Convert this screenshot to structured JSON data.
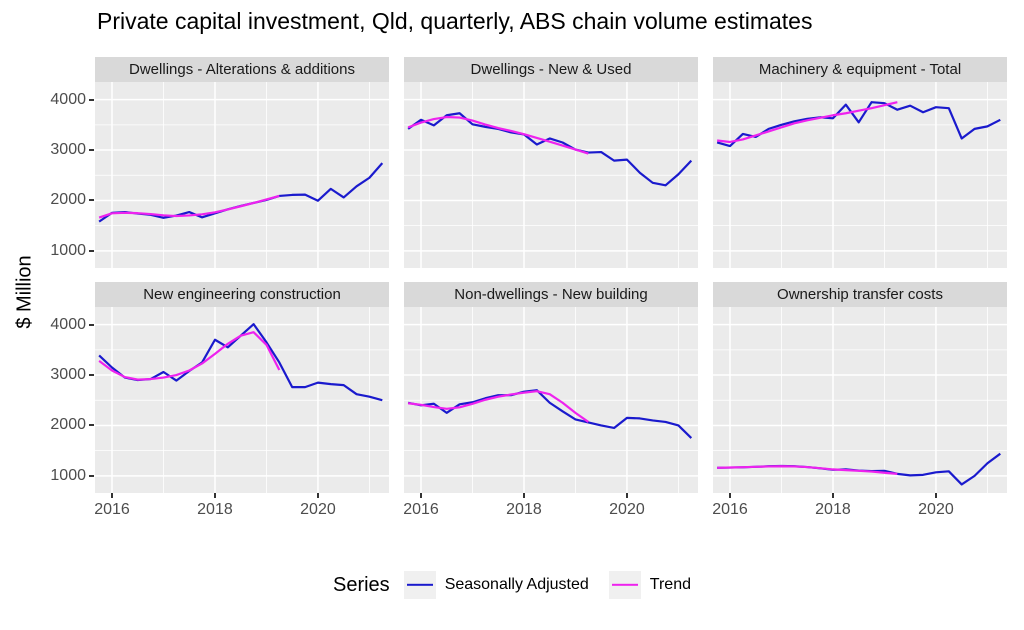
{
  "title": "Private capital investment, Qld, quarterly, ABS chain volume estimates",
  "chart_data": {
    "type": "line",
    "title": "Private capital investment, Qld, quarterly, ABS chain volume estimates",
    "ylabel": "$ Million",
    "x_axis": {
      "ticks": [
        2016,
        2018,
        2020
      ],
      "minor_ticks": [
        2017,
        2019,
        2021
      ],
      "range": [
        2015.67,
        2021.38
      ]
    },
    "y_axis": {
      "ticks": [
        1000,
        2000,
        3000,
        4000
      ],
      "minor_ticks": [
        1500,
        2500,
        3500
      ],
      "range": [
        660,
        4350
      ]
    },
    "x_start": 2015.75,
    "x_step": 0.25,
    "grid": "on",
    "legend": {
      "title": "Series",
      "position": "bottom",
      "entries": [
        {
          "label": "Seasonally Adjusted",
          "series": "seasonally_adjusted",
          "color": "#1a1acd"
        },
        {
          "label": "Trend",
          "series": "trend",
          "color": "#ee22ee"
        }
      ]
    },
    "colors": {
      "panel_bg": "#ebebeb",
      "strip_bg": "#d9d9d9",
      "grid_major": "#ffffff",
      "grid_minor": "#ffffff",
      "axis_text": "#4d4d4d",
      "tick_mark": "#333333"
    },
    "facets": [
      {
        "label": "Dwellings - Alterations & additions",
        "seasonally_adjusted": [
          1580,
          1755,
          1770,
          1740,
          1715,
          1655,
          1700,
          1770,
          1665,
          1745,
          1825,
          1890,
          1950,
          2010,
          2090,
          2110,
          2115,
          1995,
          2230,
          2060,
          2280,
          2450,
          2740
        ],
        "trend": [
          1660,
          1745,
          1755,
          1748,
          1730,
          1705,
          1690,
          1703,
          1725,
          1765,
          1822,
          1885,
          1950,
          2020,
          2090
        ]
      },
      {
        "label": "Dwellings - New & Used",
        "seasonally_adjusted": [
          3420,
          3600,
          3490,
          3690,
          3730,
          3510,
          3460,
          3420,
          3350,
          3310,
          3110,
          3230,
          3150,
          3010,
          2950,
          2960,
          2790,
          2810,
          2550,
          2350,
          2300,
          2520,
          2790
        ],
        "trend": [
          3450,
          3545,
          3615,
          3655,
          3645,
          3585,
          3505,
          3435,
          3380,
          3315,
          3240,
          3165,
          3090,
          3010,
          2930
        ]
      },
      {
        "label": "Machinery & equipment - Total",
        "seasonally_adjusted": [
          3150,
          3080,
          3320,
          3260,
          3420,
          3500,
          3570,
          3620,
          3650,
          3630,
          3900,
          3550,
          3950,
          3930,
          3800,
          3880,
          3750,
          3850,
          3830,
          3230,
          3420,
          3470,
          3600
        ],
        "trend": [
          3190,
          3160,
          3210,
          3290,
          3370,
          3450,
          3530,
          3590,
          3640,
          3690,
          3730,
          3780,
          3830,
          3890,
          3950
        ]
      },
      {
        "label": "New engineering construction",
        "seasonally_adjusted": [
          3390,
          3150,
          2950,
          2900,
          2920,
          3060,
          2890,
          3080,
          3250,
          3700,
          3550,
          3780,
          4010,
          3650,
          3250,
          2760,
          2760,
          2850,
          2820,
          2800,
          2620,
          2570,
          2500
        ],
        "trend": [
          3280,
          3090,
          2960,
          2910,
          2920,
          2950,
          3000,
          3090,
          3230,
          3420,
          3620,
          3780,
          3850,
          3600,
          3100
        ]
      },
      {
        "label": "Non-dwellings - New building",
        "seasonally_adjusted": [
          2450,
          2400,
          2430,
          2250,
          2420,
          2460,
          2540,
          2600,
          2600,
          2670,
          2700,
          2450,
          2280,
          2120,
          2060,
          2000,
          1950,
          2150,
          2140,
          2100,
          2070,
          2000,
          1750
        ],
        "trend": [
          2440,
          2410,
          2365,
          2330,
          2360,
          2430,
          2510,
          2570,
          2615,
          2650,
          2680,
          2620,
          2450,
          2250,
          2070
        ]
      },
      {
        "label": "Ownership transfer costs",
        "seasonally_adjusted": [
          1160,
          1165,
          1170,
          1180,
          1190,
          1195,
          1190,
          1175,
          1150,
          1120,
          1130,
          1105,
          1095,
          1100,
          1040,
          1010,
          1020,
          1070,
          1090,
          830,
          1000,
          1250,
          1440
        ],
        "trend": [
          1160,
          1166,
          1172,
          1180,
          1187,
          1191,
          1187,
          1175,
          1152,
          1128,
          1114,
          1100,
          1085,
          1062,
          1040
        ]
      }
    ]
  }
}
